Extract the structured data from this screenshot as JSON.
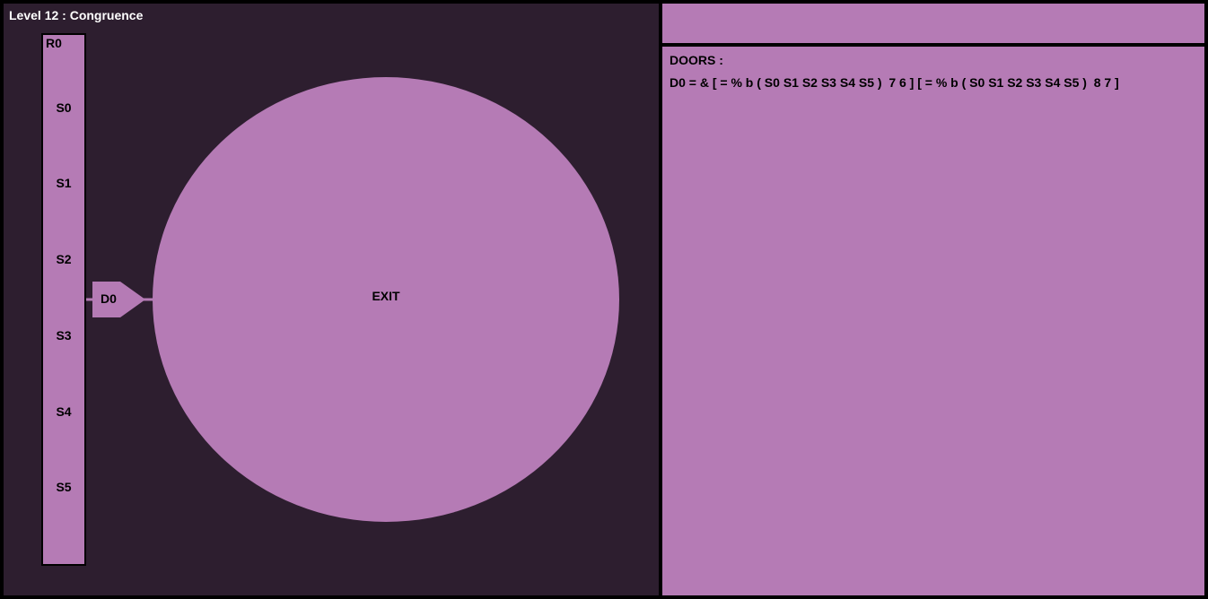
{
  "level": {
    "title": "Level 12 : Congruence"
  },
  "register": {
    "name": "R0",
    "slots": [
      "S0",
      "S1",
      "S2",
      "S3",
      "S4",
      "S5"
    ]
  },
  "door": {
    "label": "D0"
  },
  "exit": {
    "label": "EXIT"
  },
  "panel": {
    "heading": "DOORS :",
    "doors": [
      "D0 = & [ = % b ( S0 S1 S2 S3 S4 S5 )  7 6 ] [ = % b ( S0 S1 S2 S3 S4 S5 )  8 7 ]"
    ]
  },
  "colors": {
    "background": "#2d1e2f",
    "room": "#b57bb5",
    "outline": "#000000",
    "title_text": "#ffffff"
  }
}
